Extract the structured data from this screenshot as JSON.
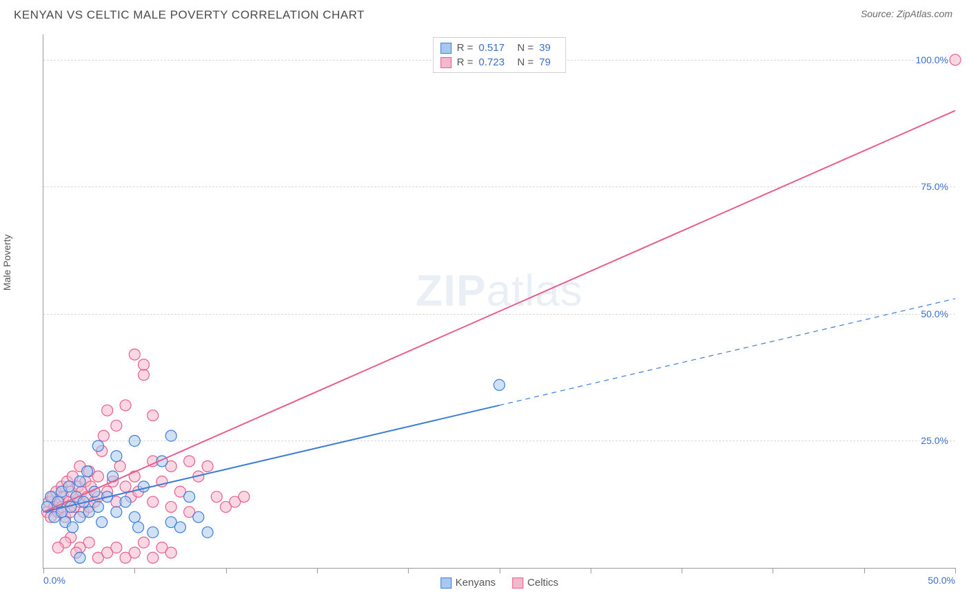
{
  "header": {
    "title": "KENYAN VS CELTIC MALE POVERTY CORRELATION CHART",
    "source_label": "Source:",
    "source_name": "ZipAtlas.com"
  },
  "watermark": {
    "bold": "ZIP",
    "rest": "atlas"
  },
  "chart": {
    "type": "scatter",
    "ylabel": "Male Poverty",
    "xlim": [
      0,
      50
    ],
    "ylim": [
      0,
      105
    ],
    "x_ticks": [
      0,
      5,
      10,
      15,
      20,
      25,
      30,
      35,
      40,
      45,
      50
    ],
    "x_tick_labels": {
      "0": "0.0%",
      "50": "50.0%"
    },
    "y_gridlines": [
      25,
      50,
      75,
      100
    ],
    "y_tick_labels": {
      "25": "25.0%",
      "50": "50.0%",
      "75": "75.0%",
      "100": "100.0%"
    },
    "grid_color": "#d8d8d8",
    "axis_color": "#999999",
    "background_color": "#ffffff",
    "marker_radius": 8,
    "marker_opacity": 0.55,
    "line_width": 2,
    "series": [
      {
        "name": "Kenyans",
        "color_stroke": "#3b7dd8",
        "color_fill": "#a9c8ef",
        "R": "0.517",
        "N": "39",
        "trend": {
          "x1": 0,
          "y1": 11,
          "x2": 50,
          "y2": 53,
          "solid_until_x": 25
        },
        "points": [
          [
            0.2,
            12
          ],
          [
            0.4,
            14
          ],
          [
            0.6,
            10
          ],
          [
            0.8,
            13
          ],
          [
            1.0,
            15
          ],
          [
            1.0,
            11
          ],
          [
            1.2,
            9
          ],
          [
            1.4,
            16
          ],
          [
            1.5,
            12
          ],
          [
            1.6,
            8
          ],
          [
            1.8,
            14
          ],
          [
            2.0,
            17
          ],
          [
            2.0,
            10
          ],
          [
            2.2,
            13
          ],
          [
            2.4,
            19
          ],
          [
            2.5,
            11
          ],
          [
            2.8,
            15
          ],
          [
            3.0,
            12
          ],
          [
            3.0,
            24
          ],
          [
            3.2,
            9
          ],
          [
            3.5,
            14
          ],
          [
            3.8,
            18
          ],
          [
            4.0,
            11
          ],
          [
            4.0,
            22
          ],
          [
            4.5,
            13
          ],
          [
            5.0,
            25
          ],
          [
            5.0,
            10
          ],
          [
            5.2,
            8
          ],
          [
            5.5,
            16
          ],
          [
            6.0,
            7
          ],
          [
            6.5,
            21
          ],
          [
            7.0,
            26
          ],
          [
            7.0,
            9
          ],
          [
            7.5,
            8
          ],
          [
            8.0,
            14
          ],
          [
            8.5,
            10
          ],
          [
            9.0,
            7
          ],
          [
            25.0,
            36
          ],
          [
            2.0,
            2
          ]
        ]
      },
      {
        "name": "Celtics",
        "color_stroke": "#e85d8a",
        "color_fill": "#f4b8cc",
        "R": "0.723",
        "N": "79",
        "trend": {
          "x1": 0,
          "y1": 11,
          "x2": 50,
          "y2": 90,
          "solid_until_x": 50
        },
        "points": [
          [
            0.2,
            11
          ],
          [
            0.3,
            13
          ],
          [
            0.4,
            10
          ],
          [
            0.5,
            14
          ],
          [
            0.6,
            12
          ],
          [
            0.7,
            15
          ],
          [
            0.8,
            11
          ],
          [
            0.9,
            13
          ],
          [
            1.0,
            16
          ],
          [
            1.0,
            12
          ],
          [
            1.1,
            14
          ],
          [
            1.2,
            10
          ],
          [
            1.3,
            17
          ],
          [
            1.4,
            13
          ],
          [
            1.5,
            15
          ],
          [
            1.5,
            11
          ],
          [
            1.6,
            18
          ],
          [
            1.7,
            12
          ],
          [
            1.8,
            14
          ],
          [
            1.9,
            16
          ],
          [
            2.0,
            13
          ],
          [
            2.0,
            20
          ],
          [
            2.1,
            15
          ],
          [
            2.2,
            11
          ],
          [
            2.3,
            17
          ],
          [
            2.4,
            14
          ],
          [
            2.5,
            19
          ],
          [
            2.5,
            12
          ],
          [
            2.6,
            16
          ],
          [
            2.8,
            13
          ],
          [
            3.0,
            18
          ],
          [
            3.0,
            14
          ],
          [
            3.2,
            23
          ],
          [
            3.3,
            26
          ],
          [
            3.5,
            15
          ],
          [
            3.5,
            31
          ],
          [
            3.8,
            17
          ],
          [
            4.0,
            13
          ],
          [
            4.0,
            28
          ],
          [
            4.2,
            20
          ],
          [
            4.5,
            16
          ],
          [
            4.5,
            32
          ],
          [
            4.8,
            14
          ],
          [
            5.0,
            18
          ],
          [
            5.0,
            42
          ],
          [
            5.2,
            15
          ],
          [
            5.5,
            38
          ],
          [
            5.5,
            40
          ],
          [
            6.0,
            13
          ],
          [
            6.0,
            21
          ],
          [
            6.0,
            30
          ],
          [
            6.5,
            17
          ],
          [
            7.0,
            12
          ],
          [
            7.0,
            20
          ],
          [
            7.5,
            15
          ],
          [
            8.0,
            11
          ],
          [
            8.0,
            21
          ],
          [
            8.5,
            18
          ],
          [
            9.0,
            20
          ],
          [
            9.5,
            14
          ],
          [
            10.0,
            12
          ],
          [
            10.5,
            13
          ],
          [
            11.0,
            14
          ],
          [
            3.0,
            2
          ],
          [
            3.5,
            3
          ],
          [
            4.0,
            4
          ],
          [
            4.5,
            2
          ],
          [
            5.0,
            3
          ],
          [
            5.5,
            5
          ],
          [
            6.0,
            2
          ],
          [
            6.5,
            4
          ],
          [
            7.0,
            3
          ],
          [
            2.5,
            5
          ],
          [
            2.0,
            4
          ],
          [
            1.5,
            6
          ],
          [
            1.8,
            3
          ],
          [
            1.2,
            5
          ],
          [
            0.8,
            4
          ],
          [
            50.0,
            100
          ]
        ]
      }
    ],
    "legend": {
      "series1_label": "Kenyans",
      "series2_label": "Celtics"
    },
    "stats_labels": {
      "R": "R  =",
      "N": "N  ="
    }
  }
}
